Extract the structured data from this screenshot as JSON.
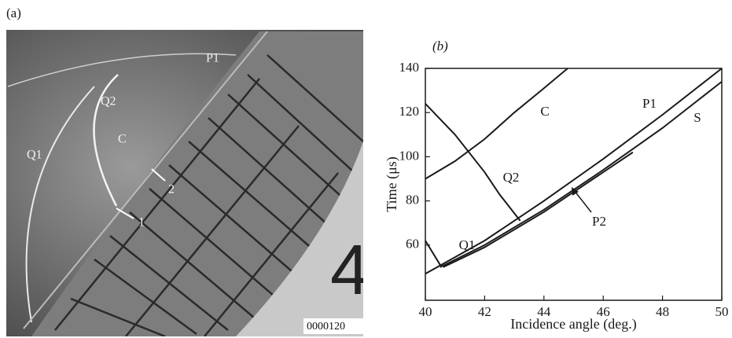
{
  "panel_a": {
    "label": "(a)",
    "annotations": [
      "Q1",
      "Q2",
      "C",
      "P1",
      "1",
      "2"
    ],
    "frame_counter": "0000120"
  },
  "chart_data": {
    "type": "line",
    "panel_label": "(b)",
    "x_label": "Incidence angle (deg.)",
    "y_label": "Time (μs)",
    "xlim": [
      40,
      50
    ],
    "xticks": [
      40,
      42,
      44,
      46,
      48,
      50
    ],
    "ylim": [
      35,
      140
    ],
    "yticks": [
      60,
      80,
      100,
      120,
      140
    ],
    "series": [
      {
        "name": "C",
        "color": "#1a1a1a",
        "x": [
          40,
          41,
          42,
          43,
          44,
          44.8
        ],
        "values": [
          90,
          98,
          108,
          120,
          131,
          140
        ]
      },
      {
        "name": "Q2",
        "color": "#1a1a1a",
        "x": [
          40,
          41,
          42,
          42.5,
          43.2
        ],
        "values": [
          124,
          110,
          93,
          83,
          71
        ]
      },
      {
        "name": "P1",
        "color": "#1a1a1a",
        "x": [
          40,
          42,
          44,
          46,
          48,
          50
        ],
        "values": [
          47,
          62,
          80,
          99,
          119,
          140
        ]
      },
      {
        "name": "S",
        "color": "#1a1a1a",
        "x": [
          40.5,
          42,
          44,
          46,
          48,
          50
        ],
        "values": [
          50,
          60,
          76,
          94,
          113,
          134
        ]
      },
      {
        "name": "Q1",
        "color": "#1a1a1a",
        "x": [
          40,
          40.5
        ],
        "values": [
          62,
          51
        ]
      },
      {
        "name": "P2",
        "color": "#1a1a1a",
        "x": [
          40.6,
          42,
          44,
          46,
          47
        ],
        "values": [
          50,
          59,
          75,
          93,
          102
        ]
      }
    ]
  }
}
